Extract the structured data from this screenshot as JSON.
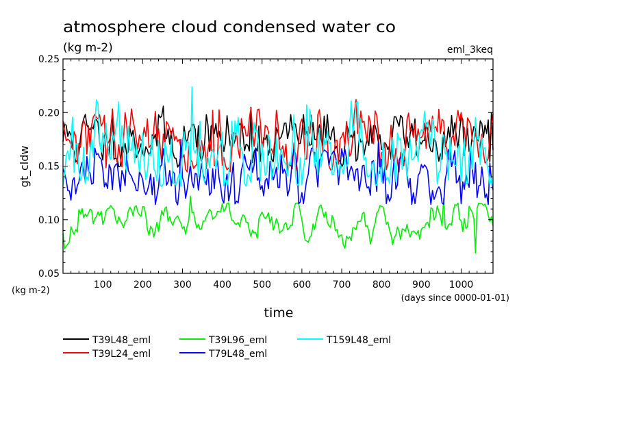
{
  "chart_data": {
    "type": "line",
    "title": "atmosphere cloud condensed water co",
    "units": "(kg m-2)",
    "experiment": "eml_3keq",
    "xlabel": "time",
    "xunits": "(days since 0000-01-01)",
    "ylabel": "gt_cldw",
    "yunits": "(kg m-2)",
    "xlim": [
      0,
      1080
    ],
    "ylim": [
      0.05,
      0.25
    ],
    "xticks": [
      100,
      200,
      300,
      400,
      500,
      600,
      700,
      800,
      900,
      1000
    ],
    "yticks": [
      0.05,
      0.1,
      0.15,
      0.2,
      0.25
    ],
    "ytick_labels": [
      "0.05",
      "0.10",
      "0.15",
      "0.20",
      "0.25"
    ],
    "x_step_days": 4,
    "grid": false,
    "legend_position": "bottom",
    "series": [
      {
        "name": "T39L48_eml",
        "color": "#000000",
        "mean": 0.176,
        "min": 0.145,
        "max": 0.206,
        "peaks": [
          [
            125,
            0.2
          ],
          [
            250,
            0.206
          ],
          [
            470,
            0.205
          ],
          [
            1075,
            0.2
          ]
        ]
      },
      {
        "name": "T39L24_eml",
        "color": "#ff0000",
        "mean": 0.172,
        "min": 0.14,
        "max": 0.212,
        "peaks": [
          [
            155,
            0.2
          ],
          [
            470,
            0.204
          ],
          [
            735,
            0.212
          ],
          [
            1000,
            0.2
          ]
        ]
      },
      {
        "name": "T39L96_eml",
        "color": "#00ee00",
        "mean": 0.097,
        "min": 0.069,
        "max": 0.122,
        "peaks": [
          [
            320,
            0.122
          ],
          [
            955,
            0.12
          ]
        ],
        "troughs": [
          [
            1035,
            0.069
          ]
        ]
      },
      {
        "name": "T79L48_eml",
        "color": "#0000ff",
        "mean": 0.14,
        "min": 0.11,
        "max": 0.175,
        "peaks": [
          [
            295,
            0.175
          ],
          [
            790,
            0.172
          ]
        ]
      },
      {
        "name": "T159L48_eml",
        "color": "#00ffff",
        "mean": 0.16,
        "min": 0.125,
        "max": 0.224,
        "peaks": [
          [
            140,
            0.21
          ],
          [
            325,
            0.224
          ],
          [
            610,
            0.207
          ]
        ]
      }
    ]
  }
}
